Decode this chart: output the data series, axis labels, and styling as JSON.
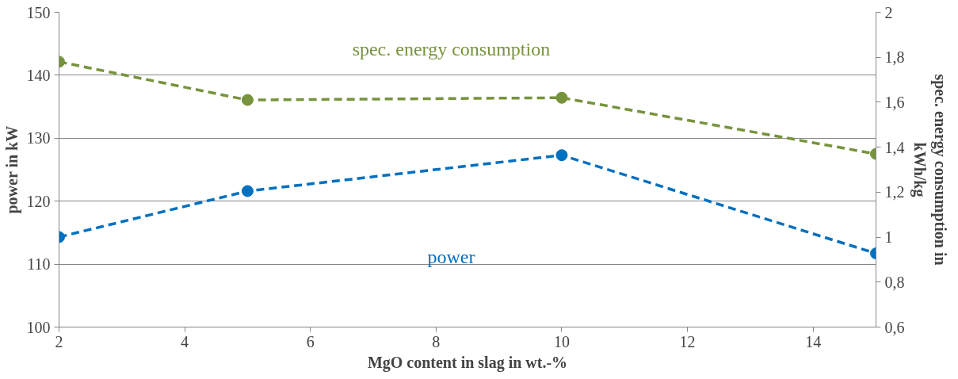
{
  "chart_data": {
    "type": "line",
    "xlabel": "MgO content in slag in wt.-%",
    "ylabel": "power in kW",
    "y2label": "spec. energy consumption in kWh/kg",
    "x": [
      2,
      5,
      10,
      15
    ],
    "series": [
      {
        "name": "power",
        "color": "#0070c0",
        "values": [
          114.3,
          121.6,
          127.3,
          111.7
        ]
      },
      {
        "name": "spec. energy consumption",
        "color": "#77933c",
        "values": [
          1.78,
          1.61,
          1.62,
          1.37
        ],
        "axis": "y2"
      }
    ],
    "xlim": [
      2,
      15
    ],
    "xticks": [
      2,
      4,
      6,
      8,
      10,
      12,
      14
    ],
    "ylim": [
      100,
      150
    ],
    "yticks": [
      100,
      110,
      120,
      130,
      140,
      150
    ],
    "y2lim": [
      0.6,
      2
    ],
    "y2ticks": [
      {
        "value": 0.6,
        "label": "0,6"
      },
      {
        "value": 0.8,
        "label": "0,8"
      },
      {
        "value": 1,
        "label": "1"
      },
      {
        "value": 1.2,
        "label": "1,2"
      },
      {
        "value": 1.4,
        "label": "1,4"
      },
      {
        "value": 1.6,
        "label": "1,6"
      },
      {
        "value": 1.8,
        "label": "1,8"
      },
      {
        "value": 2,
        "label": "2"
      }
    ],
    "grid": "y",
    "marker": "circle",
    "line_style": "dashed"
  }
}
